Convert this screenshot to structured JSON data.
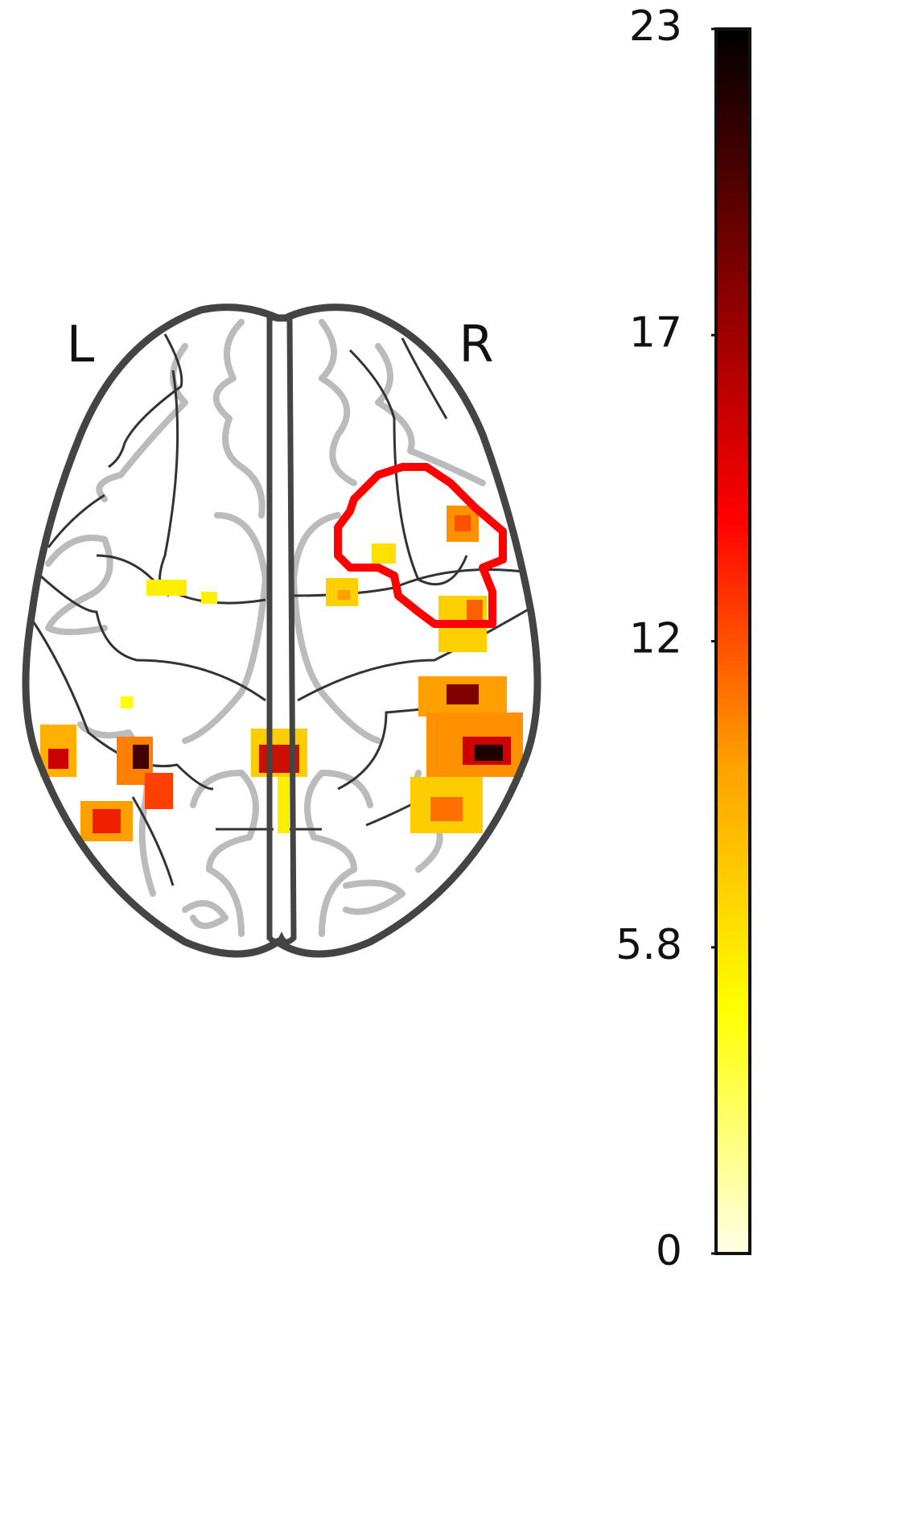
{
  "chart_data": {
    "type": "glass-brain",
    "hemisphere_labels": [
      "L",
      "R"
    ],
    "colorbar": {
      "ylim": [
        0,
        23
      ],
      "yticks": [
        0,
        {
          "value": 5.75,
          "label": "5.8"
        },
        {
          "value": 11.5,
          "label": "12"
        },
        {
          "value": 17.25,
          "label": "17"
        },
        23
      ],
      "colormap": [
        "#ffffe8",
        "#ffff00",
        "#ffa000",
        "#ff0000",
        "#800000",
        "#000000"
      ]
    },
    "contour_color": "#ff0000"
  }
}
